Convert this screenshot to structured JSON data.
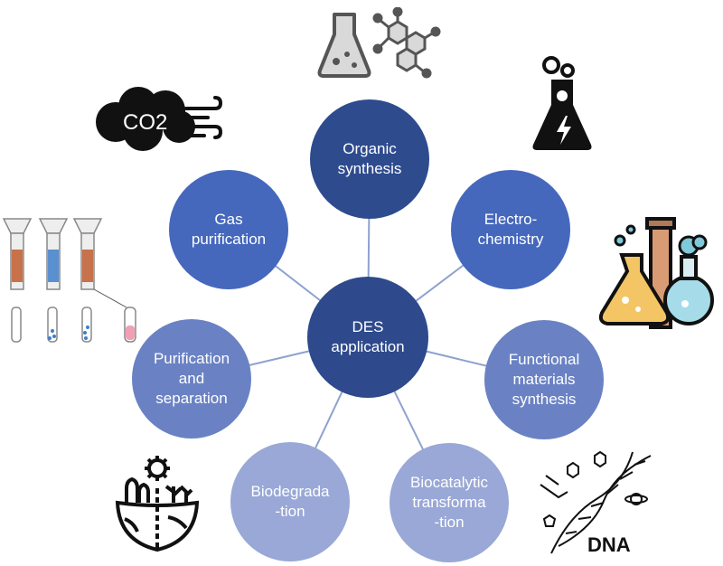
{
  "diagram": {
    "center": {
      "label": "DES\napplication",
      "color": "#2e4a8c"
    },
    "nodes": [
      {
        "id": "organic-synthesis",
        "label": "Organic\nsynthesis",
        "color": "#2e4b8e"
      },
      {
        "id": "electrochemistry",
        "label": "Electro-\nchemistry",
        "color": "#4568bd"
      },
      {
        "id": "functional-materials-synthesis",
        "label": "Functional\nmaterials\nsynthesis",
        "color": "#6a82c4"
      },
      {
        "id": "biocatalytic-transformation",
        "label": "Biocatalytic\ntransforma\n-tion",
        "color": "#99a8d6"
      },
      {
        "id": "biodegradation",
        "label": "Biodegrada\n-tion",
        "color": "#99a8d6"
      },
      {
        "id": "purification-and-separation",
        "label": "Purification\nand\nseparation",
        "color": "#6a82c4"
      },
      {
        "id": "gas-purification",
        "label": "Gas\npurification",
        "color": "#4568bd"
      }
    ],
    "connector_color": "#8ea2d0"
  },
  "icons": {
    "co2_cloud": {
      "name": "co2-cloud-icon",
      "text": "CO2"
    },
    "flask_molecule": {
      "name": "flask-molecule-icon"
    },
    "electro_flask": {
      "name": "electro-flask-icon"
    },
    "lab_glassware": {
      "name": "lab-glassware-icon"
    },
    "separation_columns": {
      "name": "separation-columns-icon"
    },
    "earth_eco": {
      "name": "earth-ecology-icon"
    },
    "dna": {
      "name": "dna-icon",
      "text": "DNA"
    }
  }
}
